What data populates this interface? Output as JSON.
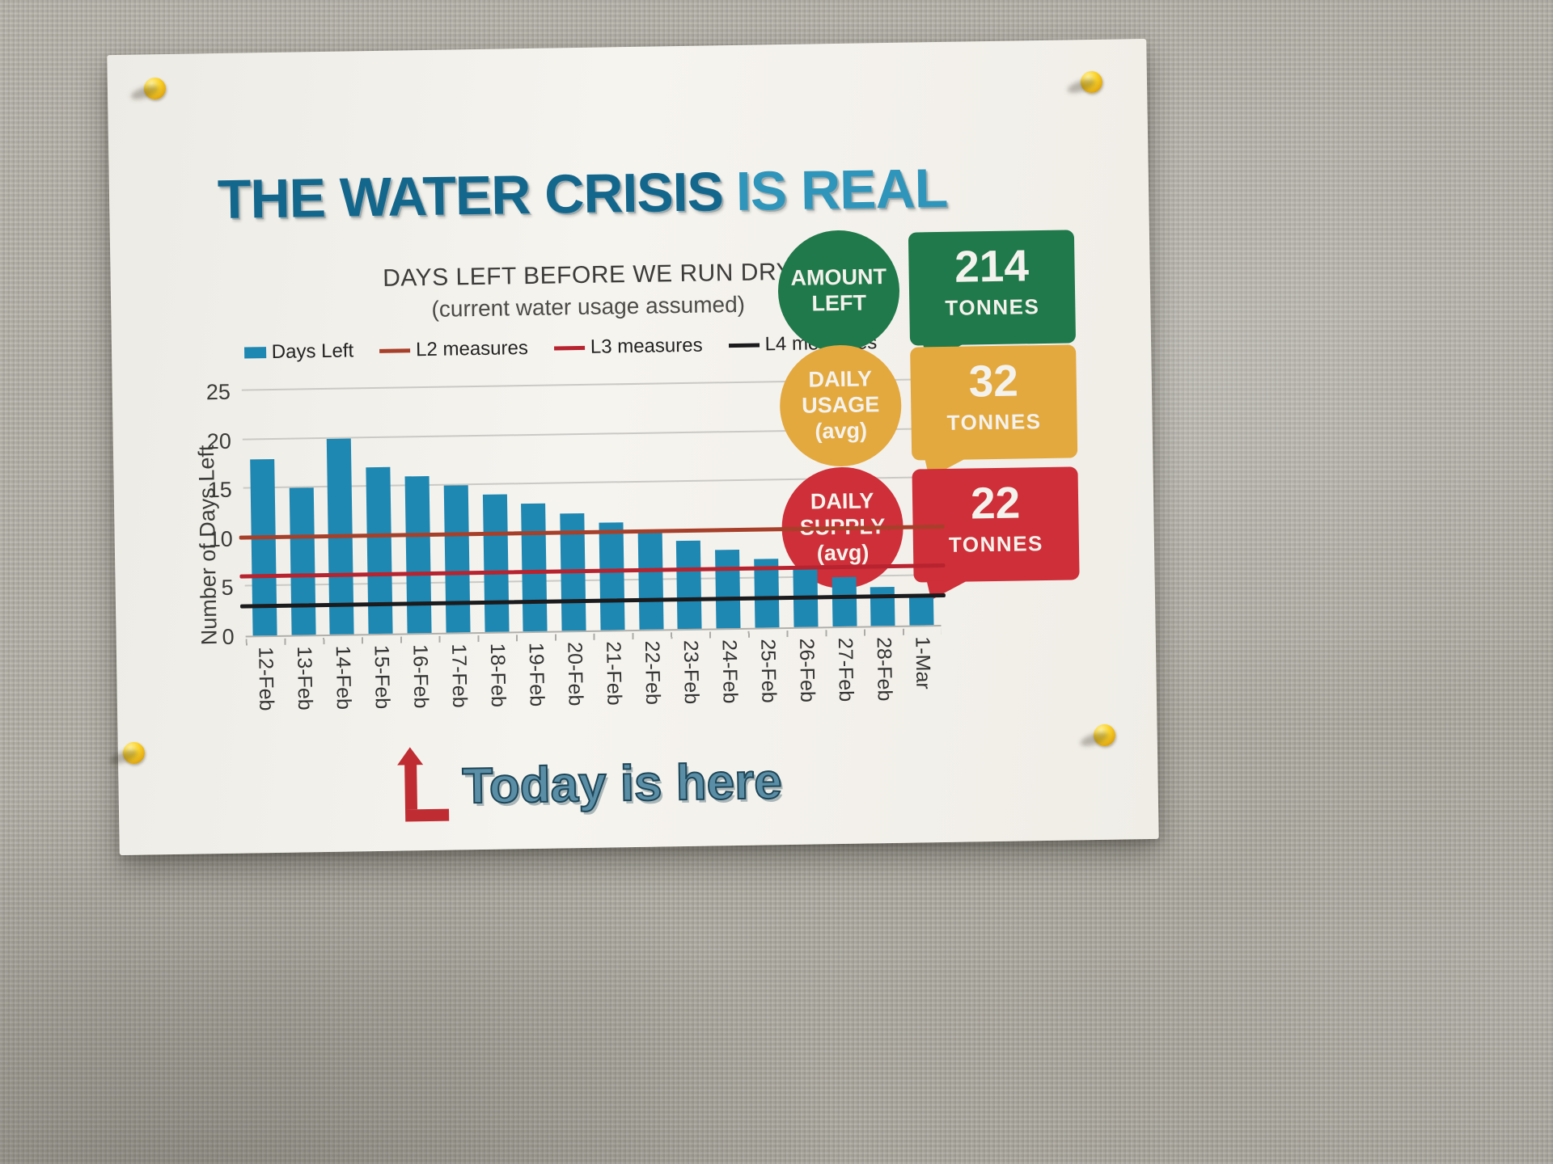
{
  "title": {
    "part1": "THE WATER CRISIS",
    "part2": "IS REAL"
  },
  "chart_data": {
    "type": "bar",
    "title": "DAYS LEFT BEFORE WE RUN DRY",
    "subtitle": "(current water usage assumed)",
    "ylabel": "Number of Days Left",
    "ylim": [
      0,
      25
    ],
    "yticks": [
      0,
      5,
      10,
      15,
      20,
      25
    ],
    "grid": true,
    "legend_position": "top",
    "categories": [
      "12-Feb",
      "13-Feb",
      "14-Feb",
      "15-Feb",
      "16-Feb",
      "17-Feb",
      "18-Feb",
      "19-Feb",
      "20-Feb",
      "21-Feb",
      "22-Feb",
      "23-Feb",
      "24-Feb",
      "25-Feb",
      "26-Feb",
      "27-Feb",
      "28-Feb",
      "1-Mar"
    ],
    "series": [
      {
        "name": "Days Left",
        "type": "bar",
        "color": "#1e87b2",
        "values": [
          18,
          15,
          20,
          17,
          16,
          15,
          14,
          13,
          12,
          11,
          10,
          9,
          8,
          7,
          6,
          5,
          4,
          3
        ]
      },
      {
        "name": "L2 measures",
        "type": "line",
        "color": "#a7402a",
        "value": 10
      },
      {
        "name": "L3 measures",
        "type": "line",
        "color": "#b7232f",
        "value": 6
      },
      {
        "name": "L4 measures",
        "type": "line",
        "color": "#1b1b1e",
        "value": 3
      }
    ]
  },
  "annotation": {
    "text": "Today is here",
    "arrow_color": "#bf2d33"
  },
  "stats": [
    {
      "label": "AMOUNT\nLEFT",
      "value": "214",
      "unit": "TONNES",
      "color": "#20794a"
    },
    {
      "label": "DAILY\nUSAGE\n(avg)",
      "value": "32",
      "unit": "TONNES",
      "color": "#e3a93f"
    },
    {
      "label": "DAILY\nSUPPLY\n(avg)",
      "value": "22",
      "unit": "TONNES",
      "color": "#ce2f38"
    }
  ]
}
